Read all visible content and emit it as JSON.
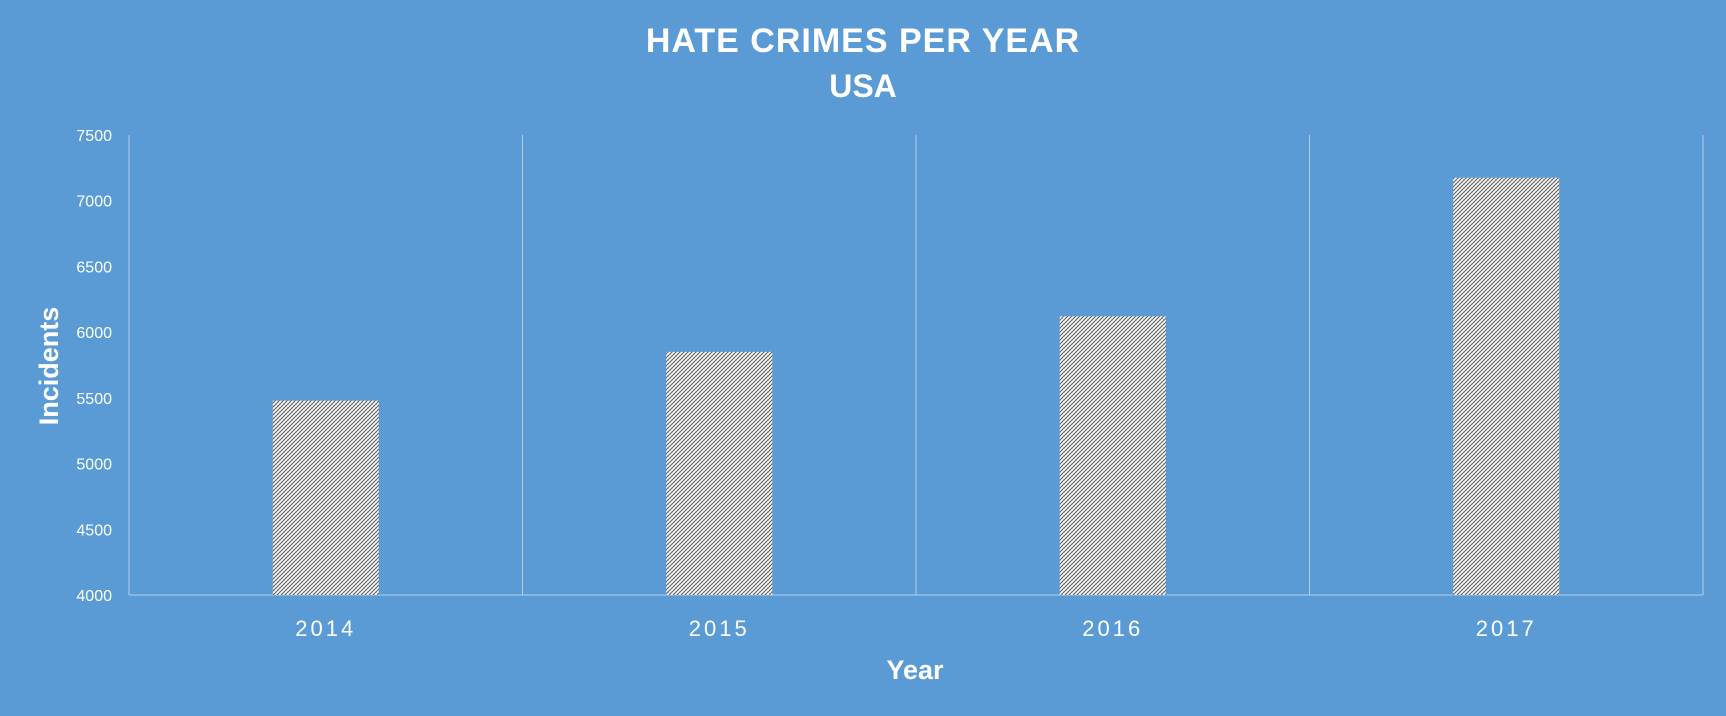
{
  "chart_data": {
    "type": "bar",
    "title": "HATE CRIMES PER YEAR",
    "subtitle": "USA",
    "xlabel": "Year",
    "ylabel": "Incidents",
    "categories": [
      "2014",
      "2015",
      "2016",
      "2017"
    ],
    "values": [
      5479,
      5850,
      6121,
      7175
    ],
    "ylim": [
      4000,
      7500
    ],
    "yticks": [
      "4000",
      "4500",
      "5000",
      "5500",
      "6000",
      "6500",
      "7000",
      "7500"
    ],
    "grid": "vertical category separators",
    "legend": "none",
    "bar_fill": "white diagonal crosshatch pattern"
  },
  "colors": {
    "background": "#5b9bd5",
    "text": "#ffffff",
    "axis_line": "#b4cfe9",
    "bar_pattern_base": "#ffffff",
    "bar_pattern_lines": "#5a5a5a"
  }
}
